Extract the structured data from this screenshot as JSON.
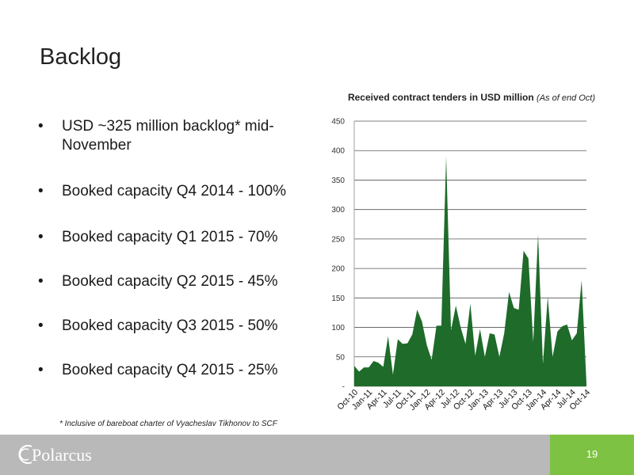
{
  "slide": {
    "title": "Backlog",
    "bullets": [
      "USD ~325 million backlog* mid-November",
      "Booked capacity Q4 2014 - 100%",
      "Booked capacity Q1 2015 - 70%",
      "Booked capacity Q2 2015 - 45%",
      "Booked capacity Q3 2015 - 50%",
      "Booked capacity Q4 2015 - 25%"
    ],
    "bullet_glyph": "•",
    "footnote": "* Inclusive of bareboat charter of Vyacheslav Tikhonov to SCF",
    "logo_text": "Polarcus",
    "page_number": "19",
    "colors": {
      "accent_green": "#7dc242",
      "area_fill": "#1e6b2a",
      "footer_gray": "#b9b9b9"
    }
  },
  "chart_data": {
    "type": "area",
    "title": "Received contract tenders in USD million",
    "subtitle": "(As of end Oct)",
    "ylim": [
      0,
      450
    ],
    "yticks": [
      0,
      50,
      100,
      150,
      200,
      250,
      300,
      350,
      400,
      450
    ],
    "ytick_labels": [
      "-",
      "50",
      "100",
      "150",
      "200",
      "250",
      "300",
      "350",
      "400",
      "450"
    ],
    "grid": true,
    "x_start": "Oct-10",
    "x_end": "Oct-14",
    "xtick_labels": [
      "Oct-10",
      "Jan-11",
      "Apr-11",
      "Jul-11",
      "Oct-11",
      "Jan-12",
      "Apr-12",
      "Jul-12",
      "Oct-12",
      "Jan-13",
      "Apr-13",
      "Jul-13",
      "Oct-13",
      "Jan-14",
      "Apr-14",
      "Jul-14",
      "Oct-14"
    ],
    "series": [
      {
        "values": [
          35,
          25,
          32,
          32,
          43,
          40,
          33,
          85,
          20,
          80,
          72,
          73,
          88,
          130,
          110,
          70,
          45,
          103,
          103,
          390,
          95,
          137,
          100,
          72,
          140,
          52,
          97,
          50,
          90,
          88,
          50,
          90,
          160,
          133,
          130,
          230,
          217,
          75,
          258,
          38,
          152,
          50,
          93,
          102,
          105,
          78,
          90,
          180,
          5
        ]
      }
    ]
  }
}
